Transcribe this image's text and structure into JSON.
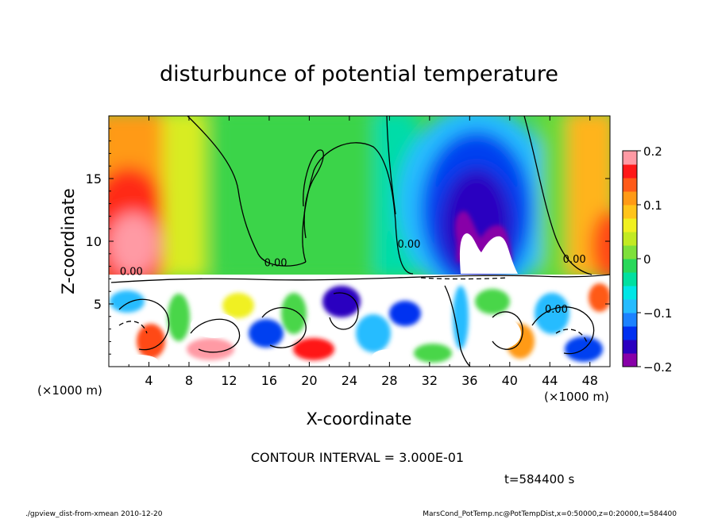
{
  "chart_data": {
    "type": "heatmap",
    "title": "disturbunce of potential temperature",
    "xlabel": "X-coordinate",
    "ylabel": "Z-coordinate",
    "x_unit_left": "(×1000 m)",
    "x_unit_right": "(×1000 m)",
    "xlim": [
      0,
      50
    ],
    "ylim": [
      0,
      20
    ],
    "xticks": [
      4,
      8,
      12,
      16,
      20,
      24,
      28,
      32,
      36,
      40,
      44,
      48
    ],
    "yticks": [
      5,
      10,
      15
    ],
    "colorbar": {
      "range": [
        -0.2,
        0.2
      ],
      "tick_values": [
        0.2,
        0.1,
        0,
        -0.1,
        -0.2
      ],
      "tick_labels": [
        "0.2",
        "0.1",
        "0",
        "−0.1",
        "−0.2"
      ],
      "colors": [
        "#8800a8",
        "#2a00c0",
        "#0030f0",
        "#1c82ff",
        "#26bcff",
        "#00e6e6",
        "#00e0a0",
        "#28d85a",
        "#7ee03a",
        "#c2ea22",
        "#f0f020",
        "#ffc41a",
        "#ff9a16",
        "#ff5a18",
        "#ff1818",
        "#ff9aa4"
      ]
    },
    "contour_labels": [
      {
        "text": "0.00",
        "x": 1.1,
        "z": 7.3
      },
      {
        "text": "0.00",
        "x": 15.5,
        "z": 8.0
      },
      {
        "text": "0.00",
        "x": 28.8,
        "z": 9.5
      },
      {
        "text": "0.00",
        "x": 45.3,
        "z": 8.3
      },
      {
        "text": "0.00",
        "x": 43.5,
        "z": 4.3
      }
    ],
    "contour_interval_text": "CONTOUR INTERVAL = 3.000E-01",
    "time_text": "t=584400 s"
  },
  "footer": {
    "left": "./gpview_dist-from-xmean  2010-12-20",
    "right": "MarsCond_PotTemp.nc@PotTempDist,x=0:50000,z=0:20000,t=584400"
  }
}
